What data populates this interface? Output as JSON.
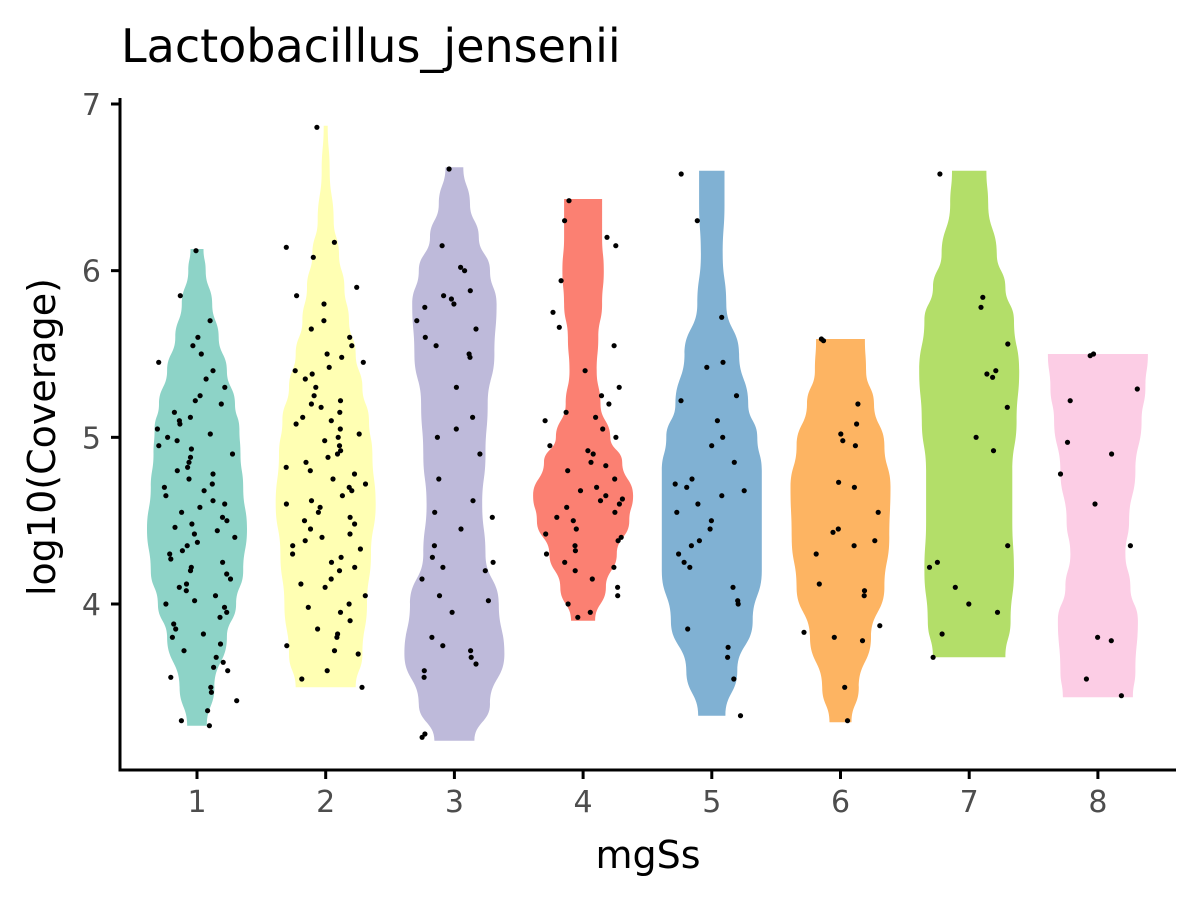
{
  "chart_data": {
    "type": "violin",
    "title": "Lactobacillus_jensenii",
    "xlabel": "mgSs",
    "ylabel": "log10(Coverage)",
    "categories": [
      "1",
      "2",
      "3",
      "4",
      "5",
      "6",
      "7",
      "8"
    ],
    "yticks": [
      "4",
      "5",
      "6",
      "7"
    ],
    "ylim": [
      3.0,
      7.0
    ],
    "legend": "none",
    "grid": false,
    "colors": [
      "#8dd3c7",
      "#ffffb3",
      "#bebada",
      "#fb8072",
      "#80b1d3",
      "#fdb462",
      "#b3de69",
      "#fccde5"
    ],
    "point_color": "#000000",
    "groups": [
      {
        "category": "1",
        "min": 3.27,
        "max": 6.13,
        "density": [
          [
            3.27,
            0.18
          ],
          [
            3.5,
            0.32
          ],
          [
            3.8,
            0.55
          ],
          [
            4.0,
            0.72
          ],
          [
            4.2,
            0.85
          ],
          [
            4.45,
            0.92
          ],
          [
            4.7,
            0.85
          ],
          [
            4.9,
            0.8
          ],
          [
            5.05,
            0.78
          ],
          [
            5.2,
            0.7
          ],
          [
            5.4,
            0.55
          ],
          [
            5.6,
            0.4
          ],
          [
            5.8,
            0.28
          ],
          [
            6.0,
            0.16
          ],
          [
            6.13,
            0.12
          ]
        ],
        "points": [
          3.27,
          3.3,
          3.36,
          3.42,
          3.47,
          3.5,
          3.56,
          3.6,
          3.62,
          3.65,
          3.68,
          3.72,
          3.76,
          3.8,
          3.82,
          3.85,
          3.88,
          3.92,
          3.95,
          3.98,
          4.0,
          4.02,
          4.05,
          4.08,
          4.1,
          4.12,
          4.15,
          4.18,
          4.2,
          4.22,
          4.25,
          4.27,
          4.3,
          4.32,
          4.35,
          4.37,
          4.4,
          4.42,
          4.44,
          4.46,
          4.48,
          4.5,
          4.52,
          4.55,
          4.58,
          4.6,
          4.62,
          4.65,
          4.68,
          4.7,
          4.72,
          4.75,
          4.78,
          4.8,
          4.82,
          4.85,
          4.88,
          4.9,
          4.93,
          4.95,
          4.98,
          5.0,
          5.02,
          5.05,
          5.08,
          5.1,
          5.12,
          5.15,
          5.2,
          5.22,
          5.25,
          5.3,
          5.35,
          5.4,
          5.45,
          5.5,
          5.55,
          5.6,
          5.7,
          5.85,
          6.12
        ]
      },
      {
        "category": "2",
        "min": 3.5,
        "max": 6.87,
        "density": [
          [
            3.5,
            0.45
          ],
          [
            3.7,
            0.55
          ],
          [
            4.0,
            0.62
          ],
          [
            4.3,
            0.68
          ],
          [
            4.6,
            0.75
          ],
          [
            4.9,
            0.7
          ],
          [
            5.1,
            0.65
          ],
          [
            5.3,
            0.55
          ],
          [
            5.5,
            0.45
          ],
          [
            5.7,
            0.35
          ],
          [
            5.9,
            0.28
          ],
          [
            6.1,
            0.2
          ],
          [
            6.3,
            0.12
          ],
          [
            6.6,
            0.06
          ],
          [
            6.87,
            0.03
          ]
        ],
        "points": [
          3.5,
          3.55,
          3.6,
          3.7,
          3.72,
          3.75,
          3.8,
          3.82,
          3.85,
          3.9,
          3.95,
          3.98,
          4.0,
          4.05,
          4.1,
          4.12,
          4.15,
          4.2,
          4.22,
          4.25,
          4.28,
          4.3,
          4.33,
          4.35,
          4.38,
          4.4,
          4.42,
          4.45,
          4.48,
          4.5,
          4.52,
          4.55,
          4.58,
          4.6,
          4.62,
          4.65,
          4.68,
          4.7,
          4.72,
          4.75,
          4.78,
          4.8,
          4.82,
          4.85,
          4.88,
          4.9,
          4.92,
          4.95,
          4.98,
          5.0,
          5.02,
          5.05,
          5.08,
          5.1,
          5.12,
          5.15,
          5.18,
          5.2,
          5.22,
          5.25,
          5.3,
          5.35,
          5.38,
          5.4,
          5.42,
          5.45,
          5.48,
          5.5,
          5.55,
          5.6,
          5.65,
          5.7,
          5.8,
          5.85,
          5.9,
          6.08,
          6.14,
          6.17,
          6.86
        ]
      },
      {
        "category": "3",
        "min": 3.18,
        "max": 6.62,
        "density": [
          [
            3.18,
            0.18
          ],
          [
            3.4,
            0.32
          ],
          [
            3.7,
            0.45
          ],
          [
            4.0,
            0.4
          ],
          [
            4.3,
            0.28
          ],
          [
            4.6,
            0.25
          ],
          [
            4.9,
            0.28
          ],
          [
            5.2,
            0.3
          ],
          [
            5.5,
            0.36
          ],
          [
            5.8,
            0.38
          ],
          [
            6.0,
            0.32
          ],
          [
            6.2,
            0.22
          ],
          [
            6.4,
            0.14
          ],
          [
            6.62,
            0.08
          ]
        ],
        "points": [
          3.2,
          3.22,
          3.56,
          3.6,
          3.64,
          3.68,
          3.72,
          3.75,
          3.8,
          3.95,
          4.02,
          4.05,
          4.15,
          4.2,
          4.22,
          4.25,
          4.28,
          4.35,
          4.45,
          4.52,
          4.55,
          4.62,
          4.75,
          4.9,
          5.0,
          5.05,
          5.12,
          5.3,
          5.48,
          5.5,
          5.55,
          5.6,
          5.65,
          5.7,
          5.78,
          5.8,
          5.83,
          5.85,
          5.88,
          6.0,
          6.02,
          6.15,
          6.61
        ]
      },
      {
        "category": "4",
        "min": 3.9,
        "max": 6.43,
        "density": [
          [
            3.9,
            0.22
          ],
          [
            4.1,
            0.42
          ],
          [
            4.3,
            0.62
          ],
          [
            4.5,
            0.85
          ],
          [
            4.65,
            0.92
          ],
          [
            4.85,
            0.72
          ],
          [
            5.0,
            0.5
          ],
          [
            5.2,
            0.32
          ],
          [
            5.4,
            0.25
          ],
          [
            5.6,
            0.28
          ],
          [
            5.8,
            0.35
          ],
          [
            6.0,
            0.38
          ],
          [
            6.2,
            0.35
          ],
          [
            6.43,
            0.35
          ]
        ],
        "points": [
          3.92,
          3.95,
          4.0,
          4.05,
          4.1,
          4.15,
          4.2,
          4.22,
          4.25,
          4.3,
          4.32,
          4.35,
          4.38,
          4.4,
          4.42,
          4.45,
          4.5,
          4.52,
          4.55,
          4.58,
          4.6,
          4.62,
          4.63,
          4.65,
          4.68,
          4.7,
          4.75,
          4.8,
          4.83,
          4.85,
          4.9,
          4.92,
          4.95,
          5.0,
          5.05,
          5.1,
          5.12,
          5.15,
          5.2,
          5.25,
          5.3,
          5.4,
          5.55,
          5.66,
          5.75,
          5.94,
          6.15,
          6.2,
          6.3,
          6.42
        ]
      },
      {
        "category": "5",
        "min": 3.33,
        "max": 6.6,
        "density": [
          [
            3.33,
            0.15
          ],
          [
            3.6,
            0.28
          ],
          [
            3.9,
            0.45
          ],
          [
            4.2,
            0.55
          ],
          [
            4.5,
            0.55
          ],
          [
            4.8,
            0.55
          ],
          [
            5.0,
            0.5
          ],
          [
            5.2,
            0.4
          ],
          [
            5.5,
            0.3
          ],
          [
            5.8,
            0.16
          ],
          [
            6.1,
            0.12
          ],
          [
            6.4,
            0.14
          ],
          [
            6.6,
            0.14
          ]
        ],
        "points": [
          3.33,
          3.55,
          3.68,
          3.74,
          3.85,
          4.0,
          4.02,
          4.1,
          4.22,
          4.25,
          4.3,
          4.35,
          4.38,
          4.45,
          4.5,
          4.55,
          4.6,
          4.65,
          4.68,
          4.7,
          4.72,
          4.75,
          4.85,
          4.95,
          5.0,
          5.1,
          5.22,
          5.25,
          5.42,
          5.45,
          5.72,
          6.3,
          6.58
        ]
      },
      {
        "category": "6",
        "min": 3.29,
        "max": 5.59,
        "density": [
          [
            3.29,
            0.18
          ],
          [
            3.5,
            0.3
          ],
          [
            3.8,
            0.5
          ],
          [
            4.1,
            0.72
          ],
          [
            4.4,
            0.8
          ],
          [
            4.7,
            0.82
          ],
          [
            4.95,
            0.72
          ],
          [
            5.2,
            0.55
          ],
          [
            5.4,
            0.42
          ],
          [
            5.59,
            0.4
          ]
        ],
        "points": [
          3.3,
          3.5,
          3.78,
          3.8,
          3.83,
          3.87,
          4.05,
          4.08,
          4.12,
          4.3,
          4.35,
          4.38,
          4.43,
          4.45,
          4.55,
          4.7,
          4.73,
          4.95,
          4.98,
          5.02,
          5.08,
          5.2,
          5.58,
          5.59
        ]
      },
      {
        "category": "7",
        "min": 3.68,
        "max": 6.6,
        "density": [
          [
            3.68,
            0.42
          ],
          [
            3.9,
            0.48
          ],
          [
            4.2,
            0.52
          ],
          [
            4.5,
            0.5
          ],
          [
            4.8,
            0.5
          ],
          [
            5.1,
            0.55
          ],
          [
            5.4,
            0.58
          ],
          [
            5.7,
            0.52
          ],
          [
            5.9,
            0.42
          ],
          [
            6.1,
            0.32
          ],
          [
            6.4,
            0.22
          ],
          [
            6.6,
            0.2
          ]
        ],
        "points": [
          3.68,
          3.82,
          3.95,
          4.0,
          4.1,
          4.22,
          4.25,
          4.35,
          4.92,
          5.0,
          5.18,
          5.36,
          5.38,
          5.4,
          5.56,
          5.78,
          5.84,
          6.58
        ]
      },
      {
        "category": "8",
        "min": 3.44,
        "max": 5.5,
        "density": [
          [
            3.44,
            0.28
          ],
          [
            3.6,
            0.3
          ],
          [
            3.9,
            0.32
          ],
          [
            4.1,
            0.26
          ],
          [
            4.3,
            0.22
          ],
          [
            4.5,
            0.25
          ],
          [
            4.8,
            0.3
          ],
          [
            5.1,
            0.35
          ],
          [
            5.3,
            0.38
          ],
          [
            5.5,
            0.4
          ]
        ],
        "points": [
          3.45,
          3.55,
          3.78,
          3.8,
          4.35,
          4.6,
          4.78,
          4.9,
          4.97,
          5.22,
          5.29,
          5.49,
          5.5
        ]
      }
    ]
  }
}
